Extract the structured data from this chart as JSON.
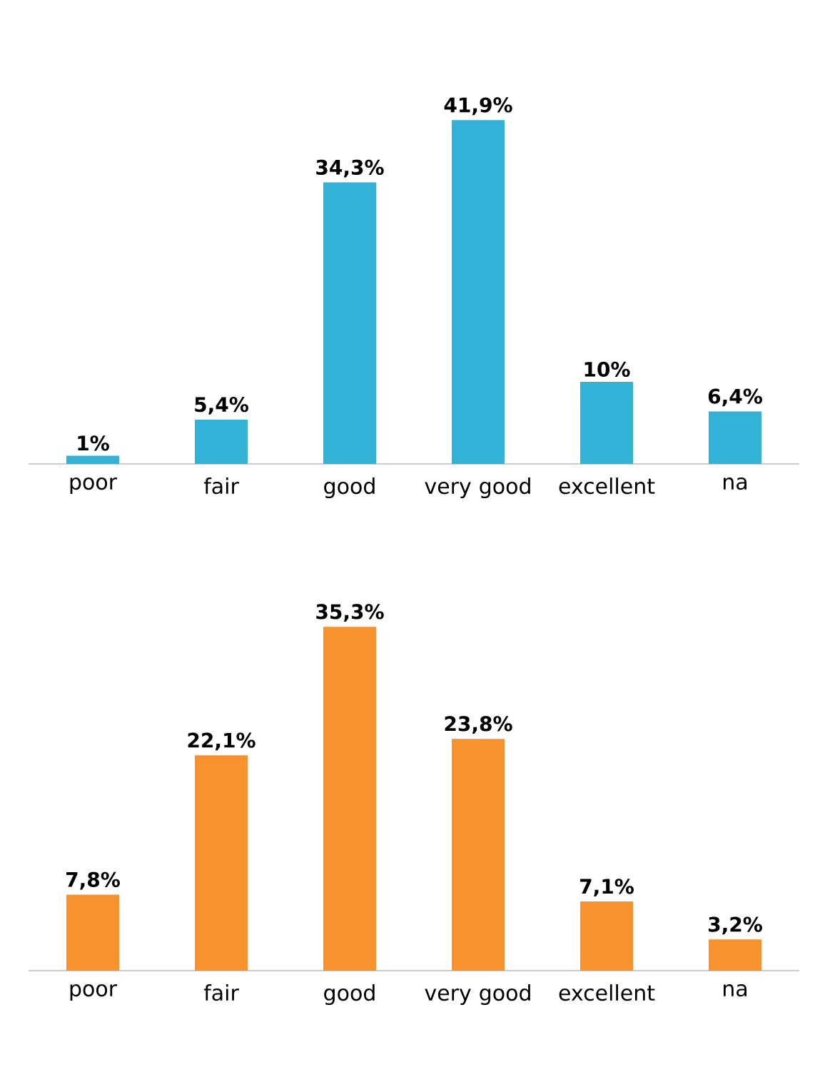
{
  "chart_data": [
    {
      "type": "bar",
      "categories": [
        "poor",
        "fair",
        "good",
        "very good",
        "excellent",
        "na"
      ],
      "values": [
        1,
        5.4,
        34.3,
        41.9,
        10,
        6.4
      ],
      "color": "#31b2d6",
      "value_labels": [
        "1%",
        "5,4%",
        "34,3%",
        "41,9%",
        "10%",
        "6,4%"
      ]
    },
    {
      "type": "bar",
      "categories": [
        "poor",
        "fair",
        "good",
        "very good",
        "excellent",
        "na"
      ],
      "values": [
        7.8,
        22.1,
        35.3,
        23.8,
        7.1,
        3.2
      ],
      "color": "#f7922e",
      "value_labels": [
        "7,8%",
        "22,1%",
        "35,3%",
        "23,8%",
        "7,1%",
        "3,2%"
      ]
    }
  ]
}
